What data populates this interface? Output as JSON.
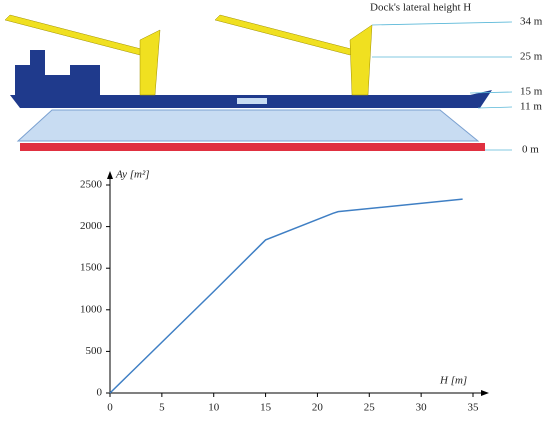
{
  "diagram": {
    "title": "Dock's lateral height H",
    "levels": [
      "34 m",
      "25 m",
      "15 m",
      "11 m",
      "0 m"
    ]
  },
  "chart_data": {
    "type": "line",
    "y_label": "Ay [m²]",
    "x_label": "H [m]",
    "x": [
      0,
      5,
      10,
      15,
      21.5,
      22,
      34
    ],
    "values": [
      0,
      610,
      1220,
      1840,
      2160,
      2180,
      2330
    ],
    "color": "#3f7fc4",
    "xlim": [
      0,
      35
    ],
    "xticks": [
      0,
      5,
      10,
      15,
      20,
      25,
      30,
      35
    ],
    "ylim": [
      0,
      2500
    ],
    "yticks": [
      0,
      500,
      1000,
      1500,
      2000,
      2500
    ],
    "grid": false
  }
}
